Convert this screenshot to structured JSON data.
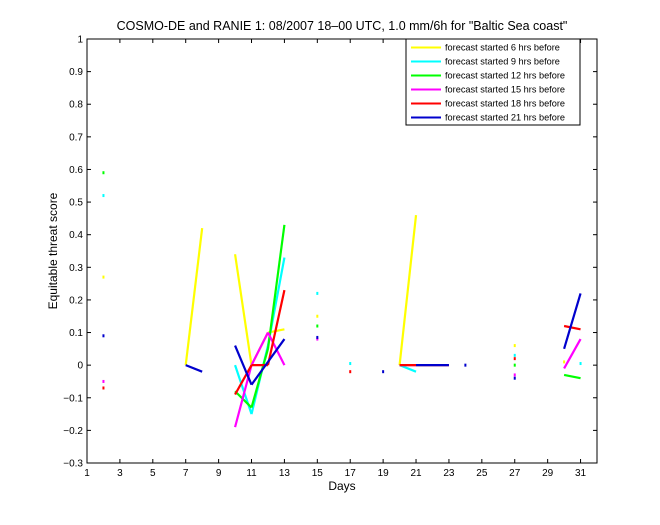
{
  "chart_data": {
    "type": "line",
    "title": "COSMO-DE and RANIE 1: 08/2007 18–00 UTC, 1.0 mm/6h for \"Baltic Sea coast\"",
    "xlabel": "Days",
    "ylabel": "Equitable threat score",
    "xlim": [
      1,
      32
    ],
    "ylim": [
      -0.3,
      1
    ],
    "xticks": [
      1,
      3,
      5,
      7,
      9,
      11,
      13,
      15,
      17,
      19,
      21,
      23,
      25,
      27,
      29,
      31
    ],
    "yticks": [
      -0.3,
      -0.2,
      -0.1,
      0,
      0.1,
      0.2,
      0.3,
      0.4,
      0.5,
      0.6,
      0.7,
      0.8,
      0.9,
      1
    ],
    "ytick_labels": [
      "−0.3",
      "−0.2",
      "−0.1",
      "0",
      "0.1",
      "0.2",
      "0.3",
      "0.4",
      "0.5",
      "0.6",
      "0.7",
      "0.8",
      "0.9",
      "1"
    ],
    "legend_position": "top-right",
    "series": [
      {
        "name": "forecast started 6 hrs before",
        "color": "#ffff00",
        "segments": [
          [
            [
              7,
              0
            ],
            [
              8,
              0.42
            ]
          ],
          [
            [
              10,
              0.34
            ],
            [
              11,
              0
            ]
          ],
          [
            [
              11,
              0
            ],
            [
              12,
              0.1
            ]
          ],
          [
            [
              12,
              0.1
            ],
            [
              13,
              0.11
            ]
          ],
          [
            [
              20,
              0
            ],
            [
              21,
              0.46
            ]
          ]
        ],
        "points": [
          [
            2,
            0.27
          ],
          [
            15,
            0.15
          ],
          [
            27,
            0.06
          ],
          [
            30,
            0.01
          ]
        ]
      },
      {
        "name": "forecast started 9 hrs before",
        "color": "#00ffff",
        "segments": [
          [
            [
              10,
              0
            ],
            [
              11,
              -0.15
            ]
          ],
          [
            [
              11,
              -0.15
            ],
            [
              12,
              0.06
            ]
          ],
          [
            [
              12,
              0.06
            ],
            [
              13,
              0.33
            ]
          ],
          [
            [
              20,
              0
            ],
            [
              21,
              -0.02
            ]
          ]
        ],
        "points": [
          [
            2,
            0.52
          ],
          [
            15,
            0.22
          ],
          [
            17,
            0.005
          ],
          [
            27,
            0.03
          ],
          [
            31,
            0.005
          ]
        ]
      },
      {
        "name": "forecast started 12 hrs before",
        "color": "#00ff00",
        "segments": [
          [
            [
              10,
              -0.08
            ],
            [
              11,
              -0.13
            ]
          ],
          [
            [
              11,
              -0.13
            ],
            [
              12,
              0.05
            ]
          ],
          [
            [
              12,
              0.05
            ],
            [
              13,
              0.43
            ]
          ],
          [
            [
              30,
              -0.03
            ],
            [
              31,
              -0.04
            ]
          ]
        ],
        "points": [
          [
            2,
            0.59
          ],
          [
            15,
            0.12
          ],
          [
            27,
            0.0
          ]
        ]
      },
      {
        "name": "forecast started 15 hrs before",
        "color": "#ff00ff",
        "segments": [
          [
            [
              10,
              -0.19
            ],
            [
              11,
              0
            ]
          ],
          [
            [
              11,
              0
            ],
            [
              12,
              0.1
            ]
          ],
          [
            [
              12,
              0.1
            ],
            [
              13,
              0
            ]
          ],
          [
            [
              20,
              0
            ],
            [
              21,
              0
            ]
          ],
          [
            [
              30,
              -0.01
            ],
            [
              31,
              0.08
            ]
          ]
        ],
        "points": [
          [
            2,
            -0.05
          ],
          [
            15,
            0.08
          ],
          [
            27,
            -0.03
          ]
        ]
      },
      {
        "name": "forecast started 18 hrs before",
        "color": "#ff0000",
        "segments": [
          [
            [
              10,
              -0.09
            ],
            [
              11,
              0
            ]
          ],
          [
            [
              11,
              0
            ],
            [
              12,
              0
            ]
          ],
          [
            [
              12,
              0
            ],
            [
              13,
              0.23
            ]
          ],
          [
            [
              20,
              0
            ],
            [
              23,
              0
            ]
          ],
          [
            [
              30,
              0.12
            ],
            [
              31,
              0.11
            ]
          ]
        ],
        "points": [
          [
            2,
            -0.07
          ],
          [
            17,
            -0.02
          ],
          [
            27,
            0.02
          ]
        ]
      },
      {
        "name": "forecast started 21 hrs before",
        "color": "#0000cd",
        "segments": [
          [
            [
              7,
              0
            ],
            [
              8,
              -0.02
            ]
          ],
          [
            [
              10,
              0.06
            ],
            [
              11,
              -0.06
            ]
          ],
          [
            [
              11,
              -0.06
            ],
            [
              12,
              0.01
            ]
          ],
          [
            [
              12,
              0.01
            ],
            [
              13,
              0.08
            ]
          ],
          [
            [
              21,
              0
            ],
            [
              23,
              0
            ]
          ],
          [
            [
              30,
              0.05
            ],
            [
              31,
              0.22
            ]
          ]
        ],
        "points": [
          [
            2,
            0.09
          ],
          [
            15,
            0.085
          ],
          [
            19,
            -0.02
          ],
          [
            24,
            0
          ],
          [
            27,
            -0.04
          ]
        ]
      }
    ]
  }
}
